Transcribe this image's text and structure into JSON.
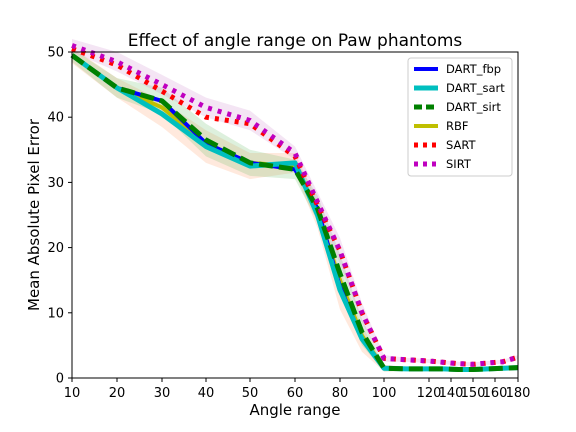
{
  "chart_data": {
    "type": "line",
    "title": "Effect of angle range on Paw phantoms",
    "xlabel": "Angle range",
    "ylabel": "Mean Absolute Pixel Error",
    "xlim": [
      10,
      180
    ],
    "ylim": [
      0,
      50
    ],
    "xticks": [
      10,
      20,
      30,
      40,
      50,
      60,
      80,
      100,
      120,
      140,
      150,
      160,
      180
    ],
    "yticks": [
      0,
      10,
      20,
      30,
      40,
      50
    ],
    "grid": false,
    "legend_position": "top-right",
    "series": [
      {
        "name": "DART_fbp",
        "color": "#0000ff",
        "style": "solid",
        "x": [
          10,
          20,
          30,
          40,
          50,
          60,
          70,
          80,
          90,
          100,
          110,
          120,
          130,
          140,
          150,
          160,
          170,
          180
        ],
        "y": [
          49.5,
          44.5,
          42.5,
          36,
          33,
          32,
          26,
          14,
          6,
          1.5,
          1.4,
          1.4,
          1.4,
          1.3,
          1.3,
          1.4,
          1.5,
          1.6
        ]
      },
      {
        "name": "DART_sart",
        "color": "#00bfbf",
        "style": "solid",
        "x": [
          10,
          20,
          30,
          40,
          50,
          60,
          70,
          80,
          90,
          100,
          110,
          120,
          130,
          140,
          150,
          160,
          170,
          180
        ],
        "y": [
          49.5,
          44.5,
          40.5,
          35.5,
          32.5,
          33,
          25,
          13.5,
          6,
          1.5,
          1.4,
          1.4,
          1.4,
          1.3,
          1.3,
          1.4,
          1.5,
          1.6
        ]
      },
      {
        "name": "DART_sirt",
        "color": "#008000",
        "style": "dashed",
        "x": [
          10,
          20,
          30,
          40,
          50,
          60,
          70,
          80,
          90,
          100,
          110,
          120,
          130,
          140,
          150,
          160,
          170,
          180
        ],
        "y": [
          49.5,
          44.5,
          42.5,
          36.5,
          33,
          32,
          26,
          16,
          7,
          1.5,
          1.4,
          1.4,
          1.4,
          1.3,
          1.3,
          1.4,
          1.5,
          1.6
        ]
      },
      {
        "name": "RBF",
        "color": "#bfbf00",
        "style": "solid",
        "x": [
          10,
          20,
          30,
          40,
          50,
          60,
          70,
          80,
          90,
          100,
          110,
          120,
          130,
          140,
          150,
          160,
          170,
          180
        ],
        "y": [
          49.5,
          44.5,
          41.5,
          36,
          33,
          32.5,
          25.5,
          15,
          6.5,
          1.5,
          1.4,
          1.4,
          1.4,
          1.3,
          1.3,
          1.4,
          1.5,
          1.6
        ]
      },
      {
        "name": "SART",
        "color": "#ff0000",
        "style": "dotted",
        "x": [
          10,
          20,
          30,
          40,
          50,
          60,
          70,
          80,
          90,
          100,
          110,
          120,
          130,
          140,
          150,
          160,
          170,
          180
        ],
        "y": [
          50.5,
          48,
          44,
          40,
          39,
          34,
          26.5,
          19.5,
          10,
          3,
          2.8,
          2.6,
          2.4,
          2.2,
          2.1,
          2.3,
          2.5,
          3.2
        ]
      },
      {
        "name": "SIRT",
        "color": "#bf00bf",
        "style": "dotted",
        "x": [
          10,
          20,
          30,
          40,
          50,
          60,
          70,
          80,
          90,
          100,
          110,
          120,
          130,
          140,
          150,
          160,
          170,
          180
        ],
        "y": [
          51,
          48.5,
          45,
          41.5,
          39.5,
          34.5,
          27,
          19.5,
          10,
          3,
          2.8,
          2.6,
          2.4,
          2.2,
          2.1,
          2.3,
          2.5,
          3.2
        ]
      }
    ]
  }
}
